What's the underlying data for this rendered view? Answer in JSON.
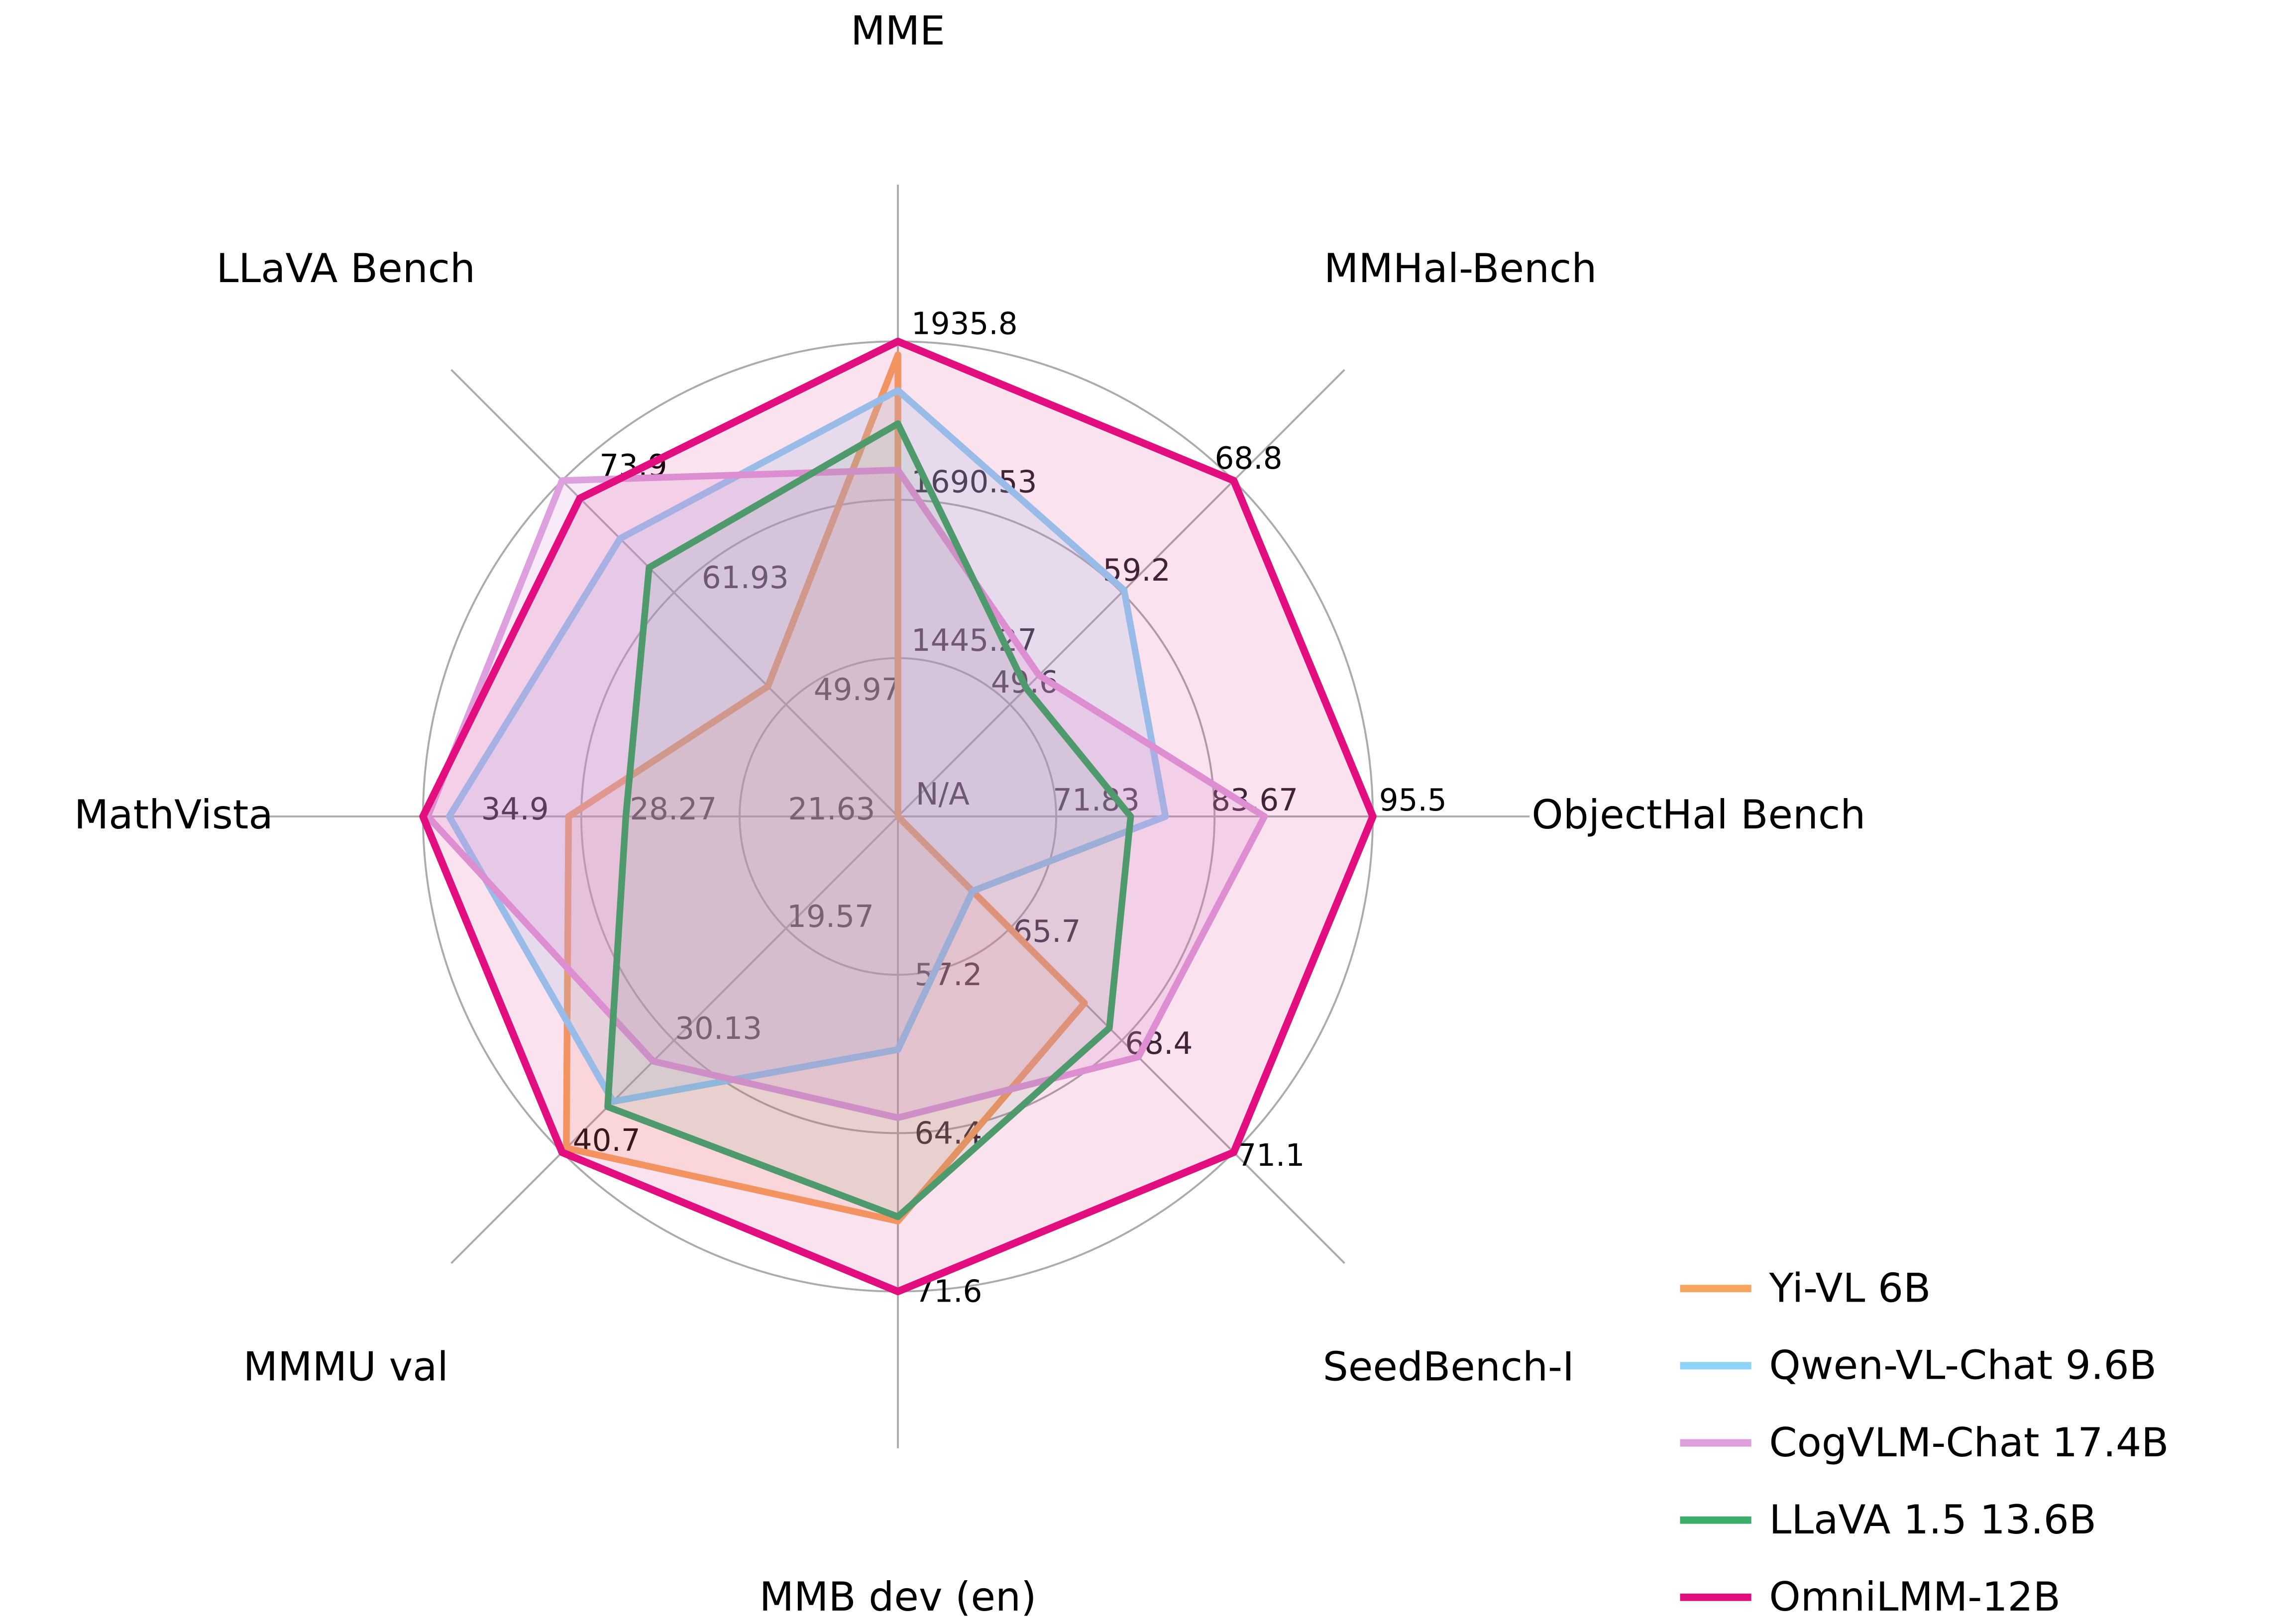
{
  "figure": {
    "background": "#ffffff",
    "grid_color": "#ABABAB",
    "tick_label_color": "#2B2630",
    "outer_tick_label_color": "#000000",
    "axis_title_color": "#000000",
    "legend_text_color": "#000000"
  },
  "chart_data": {
    "type": "radar",
    "title": "",
    "grid": "on",
    "rings": [
      0.3333,
      0.6667,
      1.0
    ],
    "legend_position": "bottom-right",
    "axes": [
      {
        "label": "MME",
        "min": 1200.01,
        "max": 1935.8,
        "ticks": [
          {
            "f": 0,
            "text": "N/A"
          },
          {
            "f": 0.3333,
            "text": "1445.27"
          },
          {
            "f": 0.6667,
            "text": "1690.53"
          },
          {
            "f": 1,
            "text": "1935.8"
          }
        ]
      },
      {
        "label": "MMHal-Bench",
        "min": 40.0,
        "max": 68.8,
        "ticks": [
          {
            "f": 0.3333,
            "text": "49.6"
          },
          {
            "f": 0.6667,
            "text": "59.2"
          },
          {
            "f": 1,
            "text": "68.8"
          }
        ]
      },
      {
        "label": "ObjectHal Bench",
        "min": 60.0,
        "max": 95.5,
        "ticks": [
          {
            "f": 0.3333,
            "text": "71.83"
          },
          {
            "f": 0.6667,
            "text": "83.67"
          },
          {
            "f": 1,
            "text": "95.5"
          }
        ]
      },
      {
        "label": "SeedBench-I",
        "min": 63.0,
        "max": 71.1,
        "ticks": [
          {
            "f": 0.3333,
            "text": "65.7"
          },
          {
            "f": 0.6667,
            "text": "68.4"
          },
          {
            "f": 1,
            "text": "71.1"
          }
        ]
      },
      {
        "label": "MMB dev (en)",
        "min": 50.0,
        "max": 71.6,
        "ticks": [
          {
            "f": 0.3333,
            "text": "57.2"
          },
          {
            "f": 0.6667,
            "text": "64.4"
          },
          {
            "f": 1,
            "text": "71.6"
          }
        ]
      },
      {
        "label": "MMMU val",
        "min": 9.0,
        "max": 40.7,
        "ticks": [
          {
            "f": 0.3333,
            "text": "19.57"
          },
          {
            "f": 0.6667,
            "text": "30.13"
          },
          {
            "f": 1,
            "text": "40.7"
          }
        ]
      },
      {
        "label": "MathVista",
        "min": 15.0,
        "max": 34.9,
        "ticks": [
          {
            "f": 0.3333,
            "text": "21.63"
          },
          {
            "f": 0.6667,
            "text": "28.27"
          },
          {
            "f": 1,
            "text": "34.9"
          }
        ]
      },
      {
        "label": "LLaVA Bench",
        "min": 38.0,
        "max": 73.9,
        "ticks": [
          {
            "f": 0.3333,
            "text": "49.97"
          },
          {
            "f": 0.6667,
            "text": "61.93"
          },
          {
            "f": 1,
            "text": "73.9"
          }
        ]
      }
    ],
    "series": [
      {
        "name": "Yi-VL 6B",
        "color": "#F6A55F",
        "fill_alpha": 0.15,
        "values": [
          1915.1,
          null,
          null,
          67.5,
          68.4,
          40.3,
          28.8,
          51.9
        ]
      },
      {
        "name": "Qwen-VL-Chat 9.6B",
        "color": "#8FD3F7",
        "fill_alpha": 0.2,
        "values": [
          1860.0,
          59.4,
          80.0,
          64.8,
          60.6,
          35.9,
          33.8,
          67.7
        ]
      },
      {
        "name": "CogVLM-Chat 17.4B",
        "color": "#DDA0DD",
        "fill_alpha": 0.22,
        "values": [
          1736.6,
          52.1,
          87.4,
          68.8,
          63.7,
          32.1,
          34.7,
          73.9
        ]
      },
      {
        "name": "LLaVA 1.5 13.6B",
        "color": "#3CAD6A",
        "fill_alpha": 0.1,
        "values": [
          1808.4,
          51.0,
          77.4,
          68.1,
          68.2,
          36.4,
          26.4,
          64.6
        ]
      },
      {
        "name": "OmniLMM-12B",
        "color": "#E20D7E",
        "fill_alpha": 0.12,
        "values": [
          1935.8,
          68.8,
          95.5,
          71.1,
          71.6,
          40.7,
          34.9,
          72.0
        ]
      }
    ],
    "na_text": "N/A"
  }
}
